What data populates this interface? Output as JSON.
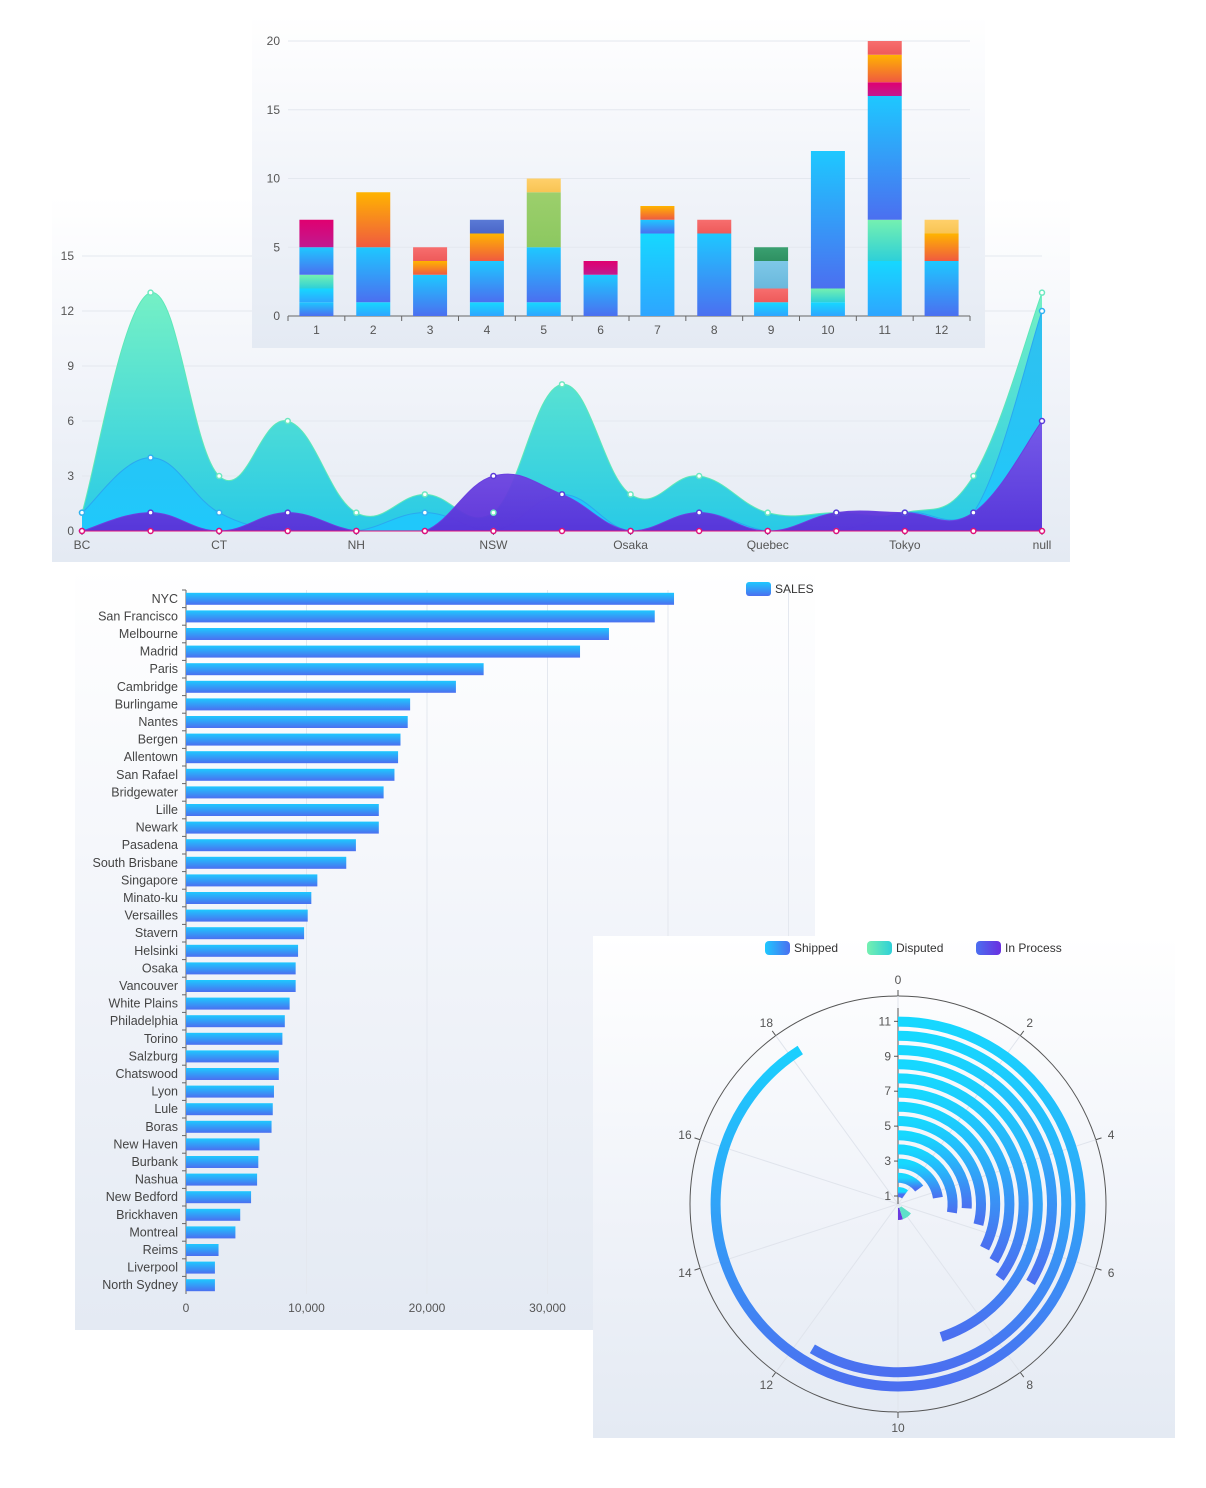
{
  "colors": {
    "axis": "#666666",
    "grid": "#e4e8ef",
    "blue_top": "#1ec8ff",
    "blue_bottom": "#4b6ff0",
    "purple": "#6a2fe0",
    "teal": "#6ef0c2",
    "teal_bottom": "#1ec8e6"
  },
  "chart_data": [
    {
      "type": "area",
      "categories": [
        "BC",
        "",
        "CT",
        "",
        "NH",
        "",
        "NSW",
        "",
        "Osaka",
        "",
        "Quebec",
        "",
        "Tokyo",
        "",
        "null"
      ],
      "x_tick_labels": [
        "BC",
        "CT",
        "NH",
        "NSW",
        "Osaka",
        "Quebec",
        "Tokyo",
        "null"
      ],
      "y_ticks": [
        0,
        3,
        6,
        9,
        12,
        15
      ],
      "ylim": [
        0,
        16
      ],
      "grid": true,
      "series": [
        {
          "values": [
            1,
            13,
            3,
            6,
            1,
            2,
            1,
            8,
            2,
            3,
            1,
            1,
            1,
            3,
            13
          ]
        },
        {
          "values": [
            1,
            4,
            1,
            0,
            0,
            1,
            0,
            2,
            0,
            1,
            0,
            0,
            1,
            1,
            12
          ]
        },
        {
          "values": [
            0,
            1,
            0,
            1,
            0,
            0,
            3,
            2,
            0,
            1,
            0,
            1,
            1,
            1,
            6
          ]
        },
        {
          "values": [
            0,
            0,
            0,
            0,
            0,
            0,
            0,
            0,
            0,
            0,
            0,
            0,
            0,
            0,
            0
          ]
        }
      ]
    },
    {
      "type": "bar",
      "stacked": true,
      "categories": [
        "1",
        "2",
        "3",
        "4",
        "5",
        "6",
        "7",
        "8",
        "9",
        "10",
        "11",
        "12"
      ],
      "y_ticks": [
        0,
        5,
        10,
        15,
        20
      ],
      "ylim": [
        0,
        20
      ],
      "grid": true,
      "stacks": [
        [
          {
            "v": 1,
            "c": "blue"
          },
          {
            "v": 1,
            "c": "sky"
          },
          {
            "v": 1,
            "c": "mint"
          },
          {
            "v": 2,
            "c": "blue"
          },
          {
            "v": 2,
            "c": "magenta"
          }
        ],
        [
          {
            "v": 1,
            "c": "sky"
          },
          {
            "v": 4,
            "c": "blue"
          },
          {
            "v": 4,
            "c": "orange"
          }
        ],
        [
          {
            "v": 3,
            "c": "blue"
          },
          {
            "v": 1,
            "c": "orange"
          },
          {
            "v": 1,
            "c": "coral"
          }
        ],
        [
          {
            "v": 1,
            "c": "sky"
          },
          {
            "v": 3,
            "c": "blue"
          },
          {
            "v": 2,
            "c": "orange"
          },
          {
            "v": 1,
            "c": "navy"
          }
        ],
        [
          {
            "v": 1,
            "c": "sky"
          },
          {
            "v": 4,
            "c": "blue"
          },
          {
            "v": 4,
            "c": "green"
          },
          {
            "v": 1,
            "c": "yellow"
          }
        ],
        [
          {
            "v": 3,
            "c": "blue"
          },
          {
            "v": 1,
            "c": "magenta"
          }
        ],
        [
          {
            "v": 6,
            "c": "sky"
          },
          {
            "v": 1,
            "c": "blue"
          },
          {
            "v": 1,
            "c": "orange"
          }
        ],
        [
          {
            "v": 6,
            "c": "blue"
          },
          {
            "v": 1,
            "c": "coral"
          }
        ],
        [
          {
            "v": 1,
            "c": "sky"
          },
          {
            "v": 1,
            "c": "coral"
          },
          {
            "v": 2,
            "c": "lightblue"
          },
          {
            "v": 1,
            "c": "darkgreen"
          }
        ],
        [
          {
            "v": 1,
            "c": "sky"
          },
          {
            "v": 1,
            "c": "mint"
          },
          {
            "v": 10,
            "c": "blue"
          }
        ],
        [
          {
            "v": 4,
            "c": "sky"
          },
          {
            "v": 3,
            "c": "mint"
          },
          {
            "v": 9,
            "c": "blue"
          },
          {
            "v": 1,
            "c": "magenta"
          },
          {
            "v": 2,
            "c": "orange"
          },
          {
            "v": 1,
            "c": "coral"
          }
        ],
        [
          {
            "v": 4,
            "c": "blue"
          },
          {
            "v": 2,
            "c": "orange"
          },
          {
            "v": 1,
            "c": "yellow"
          }
        ]
      ],
      "palette": {
        "blue": [
          "#1ec8ff",
          "#4b6ff0"
        ],
        "sky": [
          "#16d8ff",
          "#2ea5ff"
        ],
        "mint": [
          "#75f0b0",
          "#2ed0d8"
        ],
        "magenta": [
          "#e00070",
          "#c01a90"
        ],
        "orange": [
          "#ffb400",
          "#f05a40"
        ],
        "coral": [
          "#f76e6e",
          "#ee5a5a"
        ],
        "navy": [
          "#5a7ad6",
          "#4a66c8"
        ],
        "green": [
          "#9ccf6c",
          "#8cc860"
        ],
        "yellow": [
          "#ffd06a",
          "#f8c454"
        ],
        "lightblue": [
          "#7ec8e8",
          "#6ab8dc"
        ],
        "darkgreen": [
          "#3aa070",
          "#2e9062"
        ]
      }
    },
    {
      "type": "bar",
      "orientation": "horizontal",
      "legend": [
        "SALES"
      ],
      "categories": [
        "NYC",
        "San Francisco",
        "Melbourne",
        "Madrid",
        "Paris",
        "Cambridge",
        "Burlingame",
        "Nantes",
        "Bergen",
        "Allentown",
        "San Rafael",
        "Bridgewater",
        "Lille",
        "Newark",
        "Pasadena",
        "South Brisbane",
        "Singapore",
        "Minato-ku",
        "Versailles",
        "Stavern",
        "Helsinki",
        "Osaka",
        "Vancouver",
        "White Plains",
        "Philadelphia",
        "Torino",
        "Salzburg",
        "Chatswood",
        "Lyon",
        "Lule",
        "Boras",
        "New Haven",
        "Burbank",
        "Nashua",
        "New Bedford",
        "Brickhaven",
        "Montreal",
        "Reims",
        "Liverpool",
        "North Sydney"
      ],
      "values": [
        40500,
        38900,
        35100,
        32700,
        24700,
        22400,
        18600,
        18400,
        17800,
        17600,
        17300,
        16400,
        16000,
        16000,
        14100,
        13300,
        10900,
        10400,
        10100,
        9800,
        9300,
        9100,
        9100,
        8600,
        8200,
        8000,
        7700,
        7700,
        7300,
        7200,
        7100,
        6100,
        6000,
        5900,
        5400,
        4500,
        4100,
        2700,
        2400,
        2400
      ],
      "x_ticks": [
        0,
        10000,
        20000,
        30000
      ],
      "x_tick_labels": [
        "0",
        "10,000",
        "20,000",
        "30,000"
      ],
      "xlim": [
        0,
        50000
      ],
      "grid": true
    },
    {
      "type": "polar-bar",
      "legend": [
        "Shipped",
        "Disputed",
        "In Process"
      ],
      "angle_max": 20,
      "angle_ticks": [
        0,
        2,
        4,
        6,
        8,
        10,
        12,
        14,
        16,
        18
      ],
      "radius_ticks": [
        1,
        3,
        5,
        7,
        9,
        11
      ],
      "rings": [
        {
          "segments": [
            {
              "series": "Shipped",
              "from": 0,
              "to": 2
            }
          ]
        },
        {
          "segments": [
            {
              "series": "Shipped",
              "from": 0,
              "to": 3
            }
          ]
        },
        {
          "segments": [
            {
              "series": "Shipped",
              "from": 0,
              "to": 4.5
            }
          ]
        },
        {
          "segments": [
            {
              "series": "Shipped",
              "from": 0,
              "to": 5.5
            }
          ]
        },
        {
          "segments": [
            {
              "series": "Shipped",
              "from": 0,
              "to": 5.2
            }
          ]
        },
        {
          "segments": [
            {
              "series": "Shipped",
              "from": 0,
              "to": 5.8
            }
          ]
        },
        {
          "segments": [
            {
              "series": "Shipped",
              "from": 0,
              "to": 6.5
            }
          ]
        },
        {
          "segments": [
            {
              "series": "Shipped",
              "from": 0,
              "to": 6.7
            }
          ]
        },
        {
          "segments": [
            {
              "series": "Shipped",
              "from": 0,
              "to": 7
            }
          ]
        },
        {
          "segments": [
            {
              "series": "Shipped",
              "from": 0,
              "to": 9
            }
          ]
        },
        {
          "segments": [
            {
              "series": "Shipped",
              "from": 0,
              "to": 6.7
            }
          ]
        },
        {
          "segments": [
            {
              "series": "Shipped",
              "from": 0,
              "to": 11.7
            }
          ]
        },
        {
          "segments": [
            {
              "series": "Shipped",
              "from": 0,
              "to": 18.2
            }
          ]
        }
      ],
      "inner_ring": {
        "segments": [
          {
            "series": "In Process",
            "from": 9,
            "to": 10
          },
          {
            "series": "Disputed",
            "from": 7,
            "to": 9
          }
        ]
      }
    }
  ]
}
